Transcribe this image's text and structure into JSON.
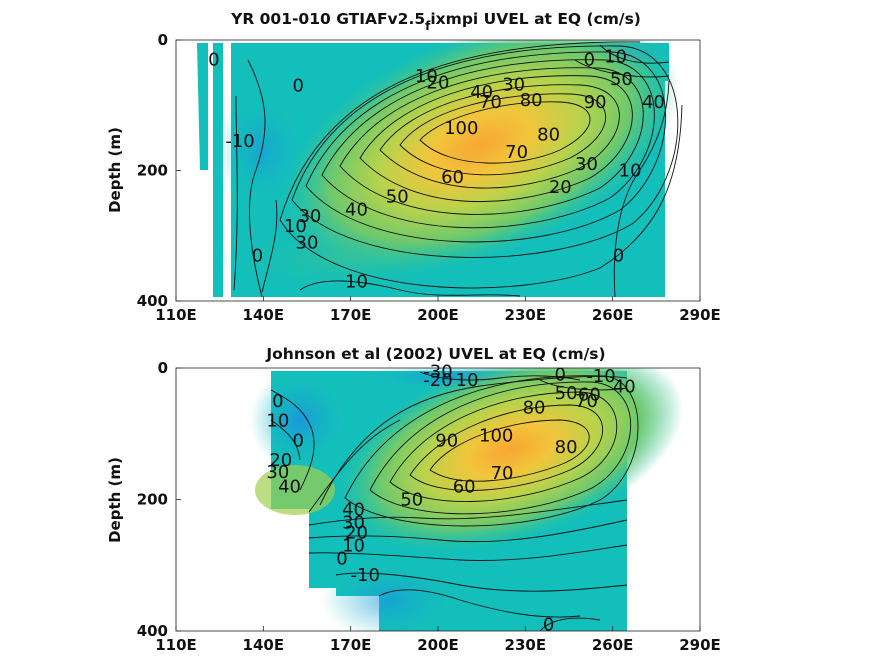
{
  "chart_data": [
    {
      "type": "contour",
      "title_main": "YR 001-010 GTIAFv2.5",
      "title_sub": "f",
      "title_tail": "ixmpi UVEL at EQ (cm/s)",
      "xlabel": "",
      "ylabel": "Depth (m)",
      "xticks": [
        "110E",
        "140E",
        "170E",
        "200E",
        "230E",
        "260E",
        "290E"
      ],
      "xlim": [
        110,
        290
      ],
      "yticks": [
        0,
        200,
        400
      ],
      "ylim": [
        0,
        400
      ],
      "y_reversed": true,
      "core": {
        "lon": 215,
        "depth": 140,
        "max": 100
      },
      "contour_labels": [
        {
          "text": "0",
          "lon": 123,
          "depth": 30
        },
        {
          "text": "0",
          "lon": 152,
          "depth": 70
        },
        {
          "text": "-10",
          "lon": 132,
          "depth": 155
        },
        {
          "text": "10",
          "lon": 196,
          "depth": 55
        },
        {
          "text": "20",
          "lon": 200,
          "depth": 65
        },
        {
          "text": "30",
          "lon": 226,
          "depth": 68
        },
        {
          "text": "40",
          "lon": 215,
          "depth": 80
        },
        {
          "text": "70",
          "lon": 218,
          "depth": 95
        },
        {
          "text": "80",
          "lon": 232,
          "depth": 92
        },
        {
          "text": "0",
          "lon": 252,
          "depth": 30
        },
        {
          "text": "10",
          "lon": 261,
          "depth": 25
        },
        {
          "text": "50",
          "lon": 263,
          "depth": 60
        },
        {
          "text": "40",
          "lon": 274,
          "depth": 95
        },
        {
          "text": "90",
          "lon": 254,
          "depth": 95
        },
        {
          "text": "100",
          "lon": 208,
          "depth": 135
        },
        {
          "text": "80",
          "lon": 238,
          "depth": 145
        },
        {
          "text": "70",
          "lon": 227,
          "depth": 172
        },
        {
          "text": "60",
          "lon": 205,
          "depth": 210
        },
        {
          "text": "30",
          "lon": 251,
          "depth": 190
        },
        {
          "text": "20",
          "lon": 242,
          "depth": 225
        },
        {
          "text": "10",
          "lon": 266,
          "depth": 200
        },
        {
          "text": "50",
          "lon": 186,
          "depth": 240
        },
        {
          "text": "40",
          "lon": 172,
          "depth": 260
        },
        {
          "text": "30",
          "lon": 156,
          "depth": 270
        },
        {
          "text": "10",
          "lon": 151,
          "depth": 285
        },
        {
          "text": "30",
          "lon": 155,
          "depth": 310
        },
        {
          "text": "0",
          "lon": 138,
          "depth": 330
        },
        {
          "text": "10",
          "lon": 172,
          "depth": 370
        },
        {
          "text": "0",
          "lon": 262,
          "depth": 330
        }
      ],
      "colors": {
        "low": "#0aa3e0",
        "zero": "#13bfba",
        "mid": "#86cc66",
        "high": "#f5b93a",
        "max": "#f5a535"
      }
    },
    {
      "type": "contour",
      "title_main": "Johnson et al (2002) UVEL at EQ (cm/s)",
      "xlabel": "",
      "ylabel": "Depth (m)",
      "xticks": [
        "110E",
        "140E",
        "170E",
        "200E",
        "230E",
        "260E",
        "290E"
      ],
      "xlim": [
        110,
        290
      ],
      "yticks": [
        0,
        200,
        400
      ],
      "ylim": [
        0,
        400
      ],
      "y_reversed": true,
      "core": {
        "lon": 225,
        "depth": 120,
        "max": 100
      },
      "contour_labels": [
        {
          "text": "-30",
          "lon": 200,
          "depth": 5
        },
        {
          "text": "-20",
          "lon": 200,
          "depth": 18
        },
        {
          "text": "10",
          "lon": 210,
          "depth": 18
        },
        {
          "text": "0",
          "lon": 242,
          "depth": 10
        },
        {
          "text": "-10",
          "lon": 256,
          "depth": 12
        },
        {
          "text": "50",
          "lon": 244,
          "depth": 38
        },
        {
          "text": "60",
          "lon": 252,
          "depth": 40
        },
        {
          "text": "40",
          "lon": 264,
          "depth": 28
        },
        {
          "text": "80",
          "lon": 233,
          "depth": 60
        },
        {
          "text": "70",
          "lon": 251,
          "depth": 50
        },
        {
          "text": "0",
          "lon": 145,
          "depth": 50
        },
        {
          "text": "10",
          "lon": 145,
          "depth": 80
        },
        {
          "text": "0",
          "lon": 152,
          "depth": 110
        },
        {
          "text": "20",
          "lon": 146,
          "depth": 140
        },
        {
          "text": "30",
          "lon": 145,
          "depth": 158
        },
        {
          "text": "40",
          "lon": 149,
          "depth": 180
        },
        {
          "text": "90",
          "lon": 203,
          "depth": 110
        },
        {
          "text": "100",
          "lon": 220,
          "depth": 103
        },
        {
          "text": "80",
          "lon": 244,
          "depth": 120
        },
        {
          "text": "70",
          "lon": 222,
          "depth": 160
        },
        {
          "text": "60",
          "lon": 209,
          "depth": 180
        },
        {
          "text": "50",
          "lon": 191,
          "depth": 200
        },
        {
          "text": "40",
          "lon": 171,
          "depth": 215
        },
        {
          "text": "30",
          "lon": 171,
          "depth": 235
        },
        {
          "text": "20",
          "lon": 172,
          "depth": 250
        },
        {
          "text": "10",
          "lon": 171,
          "depth": 270
        },
        {
          "text": "0",
          "lon": 167,
          "depth": 290
        },
        {
          "text": "-10",
          "lon": 175,
          "depth": 315
        },
        {
          "text": "0",
          "lon": 238,
          "depth": 390
        }
      ],
      "colors": {
        "low": "#2b7fe0",
        "zero": "#13bfba",
        "mid": "#86cc66",
        "high": "#f5b93a",
        "max": "#f5a535"
      }
    }
  ]
}
